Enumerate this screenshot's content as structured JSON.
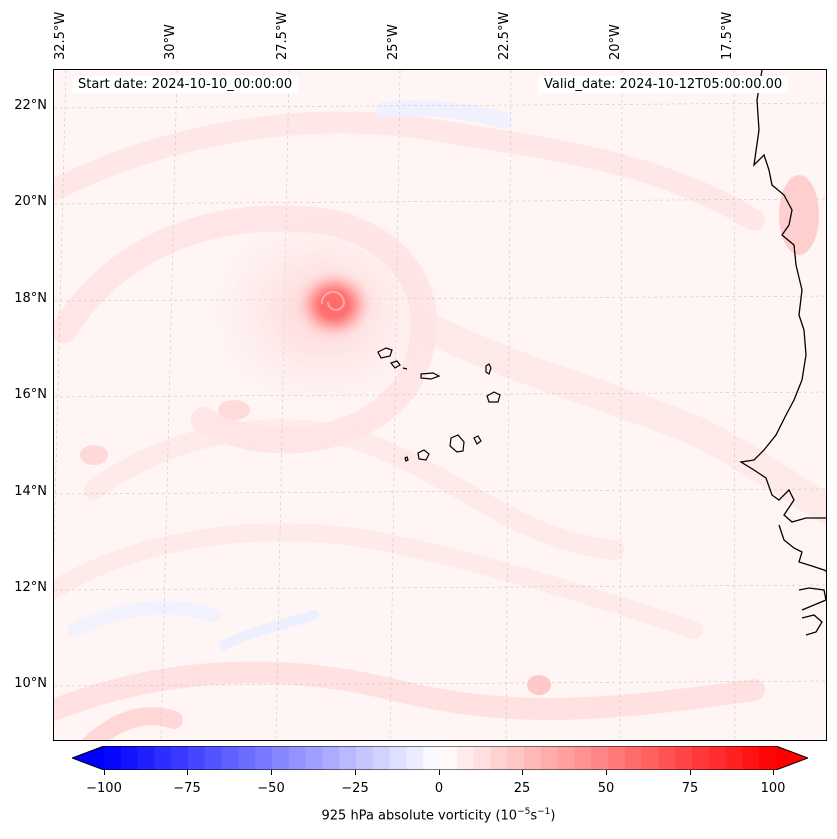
{
  "header": {
    "start_date": "Start date: 2024-10-10_00:00:00",
    "valid_date": "Valid_date: 2024-10-12T05:00:00.00"
  },
  "longitude_labels": [
    "32.5°W",
    "30°W",
    "27.5°W",
    "25°W",
    "22.5°W",
    "20°W",
    "17.5°W"
  ],
  "latitude_labels": [
    "22°N",
    "20°N",
    "18°N",
    "16°N",
    "14°N",
    "12°N",
    "10°N"
  ],
  "colorbar": {
    "ticks": [
      "−100",
      "−75",
      "−50",
      "−25",
      "0",
      "25",
      "50",
      "75",
      "100"
    ],
    "label_prefix": "925 hPa absolute vorticity (10",
    "label_exp1": "−5",
    "label_mid": "s",
    "label_exp2": "−1",
    "label_suffix": ")",
    "min": -100,
    "max": 100,
    "colors": {
      "negative": "#0000ff",
      "zero": "#ffffff",
      "positive": "#ff0000"
    }
  },
  "features": {
    "vortex_center": "vorticity-maximum",
    "coastline_color": "#000000"
  }
}
